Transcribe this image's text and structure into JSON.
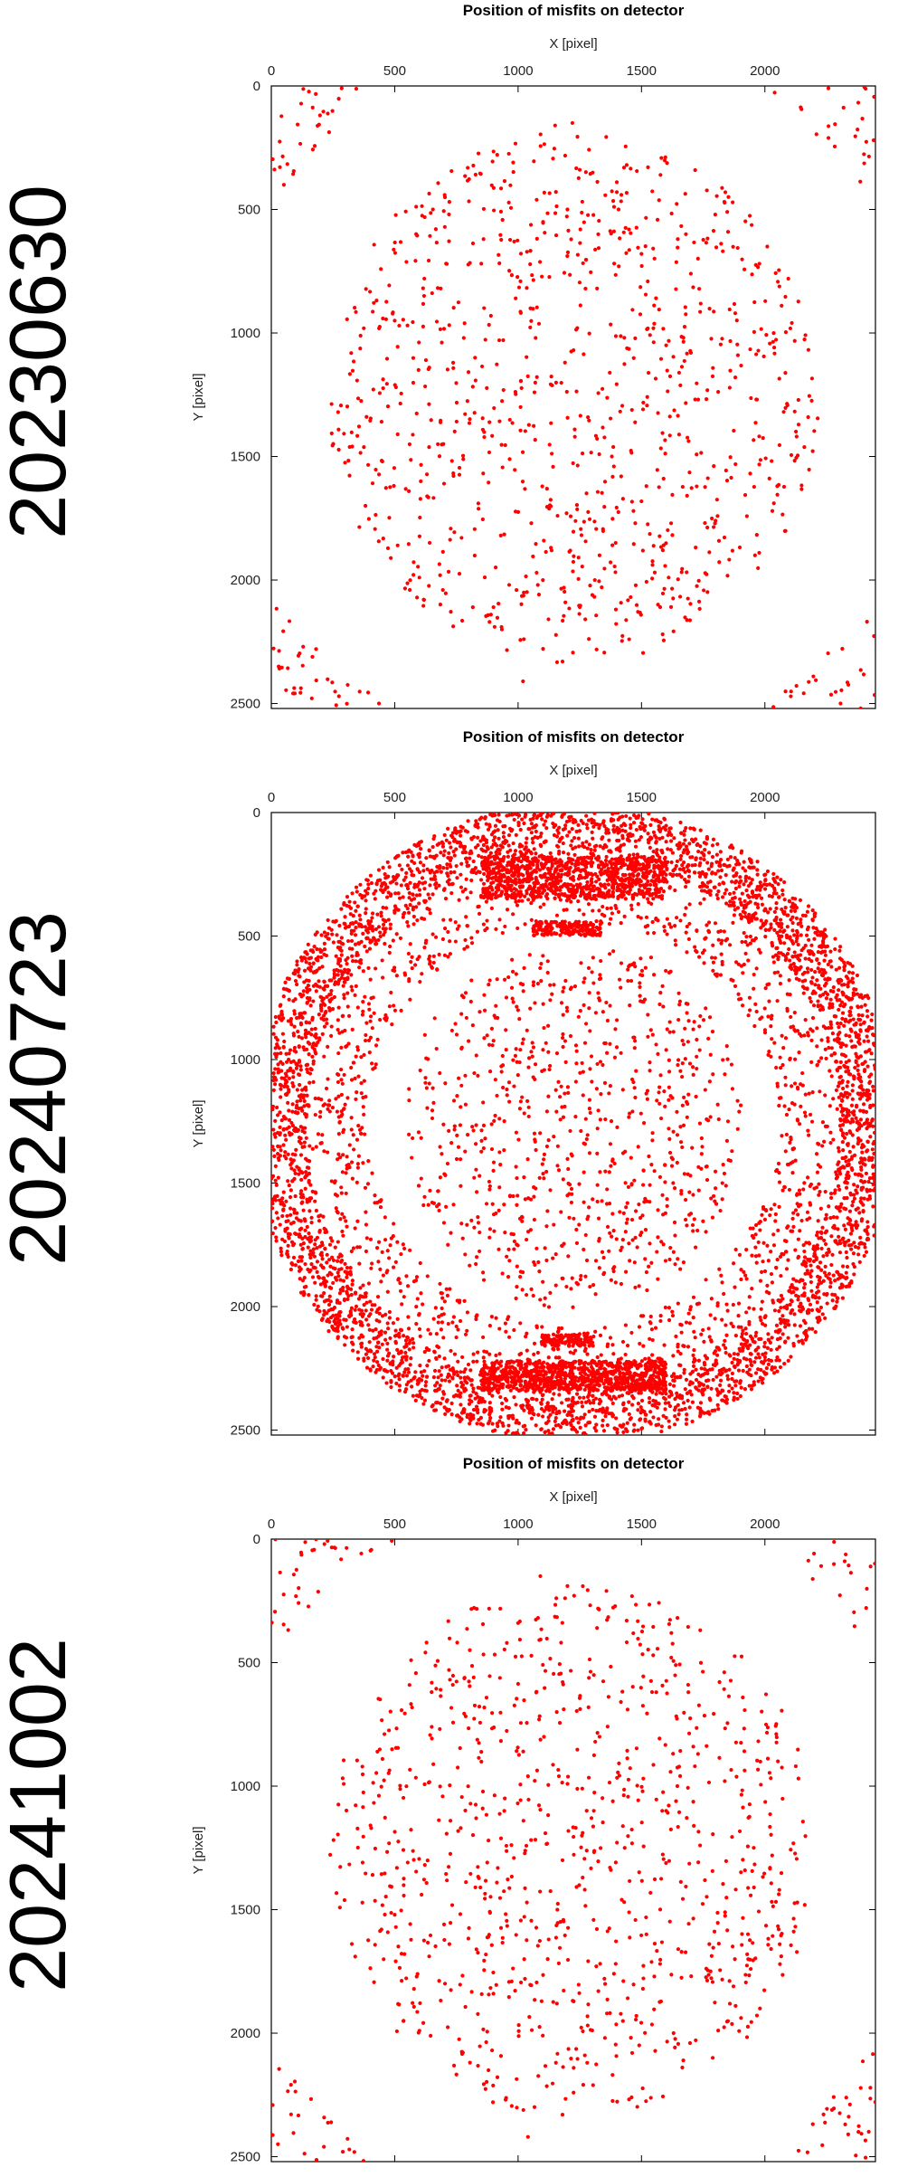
{
  "figure": {
    "panel_count": 3
  },
  "chart_data": [
    {
      "type": "scatter",
      "date_label": "20230630",
      "title": "Position of misfits on detector",
      "xlabel": "X [pixel]",
      "ylabel": "Y [pixel]",
      "xlim": [
        0,
        2448
      ],
      "ylim": [
        2520,
        0
      ],
      "xticks": [
        0,
        500,
        1000,
        1500,
        2000
      ],
      "yticks": [
        0,
        500,
        1000,
        1500,
        2000,
        2500
      ],
      "x_axis_position": "top",
      "y_axis_inverted": true,
      "grid": false,
      "marker_color": "#ff0000",
      "pattern": "corners",
      "series": [
        {
          "description_source": "dense misfit clusters at detector corners outside circular region plus scattered points inside",
          "points": [
            [
              1150,
              160
            ],
            [
              1220,
              150
            ],
            [
              980,
              310
            ],
            [
              1400,
              430
            ],
            [
              1200,
              500
            ],
            [
              860,
              620
            ],
            [
              1500,
              680
            ],
            [
              620,
              780
            ],
            [
              1320,
              820
            ],
            [
              1700,
              760
            ],
            [
              1050,
              900
            ],
            [
              1240,
              980
            ],
            [
              780,
              1020
            ],
            [
              1600,
              1050
            ],
            [
              1190,
              1120
            ],
            [
              500,
              950
            ],
            [
              1880,
              920
            ],
            [
              1010,
              1300
            ],
            [
              1230,
              1420
            ],
            [
              1380,
              1500
            ],
            [
              700,
              1610
            ],
            [
              1520,
              1620
            ],
            [
              1160,
              1740
            ],
            [
              930,
              1820
            ],
            [
              1800,
              1760
            ],
            [
              1330,
              1900
            ],
            [
              1080,
              2020
            ],
            [
              1250,
              2110
            ],
            [
              1610,
              1990
            ],
            [
              890,
              2140
            ],
            [
              1450,
              2240
            ],
            [
              1180,
              2330
            ],
            [
              1020,
              2410
            ],
            [
              600,
              1990
            ],
            [
              1960,
              1900
            ],
            [
              450,
              1520
            ],
            [
              2050,
              1620
            ],
            [
              1680,
              600
            ],
            [
              720,
              520
            ],
            [
              1440,
              320
            ]
          ]
        }
      ]
    },
    {
      "type": "scatter",
      "date_label": "20240723",
      "title": "Position of misfits on detector",
      "xlabel": "X [pixel]",
      "ylabel": "Y [pixel]",
      "xlim": [
        0,
        2448
      ],
      "ylim": [
        2520,
        0
      ],
      "xticks": [
        0,
        500,
        1000,
        1500,
        2000
      ],
      "yticks": [
        0,
        500,
        1000,
        1500,
        2000,
        2500
      ],
      "x_axis_position": "top",
      "y_axis_inverted": true,
      "grid": false,
      "marker_color": "#ff0000",
      "pattern": "ring",
      "series": [
        {
          "description_source": "dense misfit annulus near detector edge with dense bands near top and bottom plus scattered points inside",
          "points": [
            [
              1224,
              40
            ],
            [
              900,
              80
            ],
            [
              1550,
              80
            ],
            [
              600,
              180
            ],
            [
              1850,
              190
            ],
            [
              350,
              380
            ],
            [
              2100,
              360
            ],
            [
              150,
              700
            ],
            [
              2300,
              690
            ],
            [
              70,
              1000
            ],
            [
              2380,
              1060
            ],
            [
              60,
              1400
            ],
            [
              2390,
              1400
            ],
            [
              120,
              1750
            ],
            [
              2330,
              1780
            ],
            [
              270,
              2080
            ],
            [
              2180,
              2090
            ],
            [
              520,
              2320
            ],
            [
              1950,
              2320
            ],
            [
              850,
              2450
            ],
            [
              1600,
              2450
            ],
            [
              1224,
              2490
            ],
            [
              1224,
              320
            ],
            [
              1200,
              470
            ],
            [
              1220,
              2140
            ],
            [
              1220,
              2290
            ],
            [
              1000,
              800
            ],
            [
              1400,
              950
            ],
            [
              1200,
              1550
            ],
            [
              900,
              1450
            ],
            [
              1500,
              1700
            ],
            [
              1100,
              1900
            ]
          ]
        }
      ]
    },
    {
      "type": "scatter",
      "date_label": "20241002",
      "title": "Position of misfits on detector",
      "xlabel": "X [pixel]",
      "ylabel": "Y [pixel]",
      "xlim": [
        0,
        2448
      ],
      "ylim": [
        2520,
        0
      ],
      "xticks": [
        0,
        500,
        1000,
        1500,
        2000
      ],
      "yticks": [
        0,
        500,
        1000,
        1500,
        2000,
        2500
      ],
      "x_axis_position": "top",
      "y_axis_inverted": true,
      "grid": false,
      "marker_color": "#ff0000",
      "pattern": "corners",
      "series": [
        {
          "description_source": "dense misfit clusters at detector corners outside circular region plus scattered points inside",
          "points": [
            [
              1090,
              150
            ],
            [
              1200,
              190
            ],
            [
              1000,
              340
            ],
            [
              1320,
              360
            ],
            [
              820,
              560
            ],
            [
              1560,
              620
            ],
            [
              650,
              760
            ],
            [
              1330,
              800
            ],
            [
              1710,
              840
            ],
            [
              1040,
              960
            ],
            [
              1260,
              1010
            ],
            [
              1600,
              1100
            ],
            [
              880,
              1220
            ],
            [
              1180,
              1300
            ],
            [
              1420,
              1460
            ],
            [
              700,
              1560
            ],
            [
              1520,
              1600
            ],
            [
              1120,
              1700
            ],
            [
              900,
              1840
            ],
            [
              1780,
              1750
            ],
            [
              1360,
              1920
            ],
            [
              1100,
              2010
            ],
            [
              1280,
              2120
            ],
            [
              1630,
              2000
            ],
            [
              880,
              2150
            ],
            [
              1460,
              2260
            ],
            [
              1180,
              2330
            ],
            [
              1040,
              2420
            ],
            [
              600,
              1990
            ],
            [
              1980,
              1900
            ],
            [
              460,
              1520
            ],
            [
              2060,
              1640
            ],
            [
              1690,
              620
            ],
            [
              720,
              530
            ],
            [
              1440,
              330
            ]
          ]
        }
      ]
    }
  ]
}
